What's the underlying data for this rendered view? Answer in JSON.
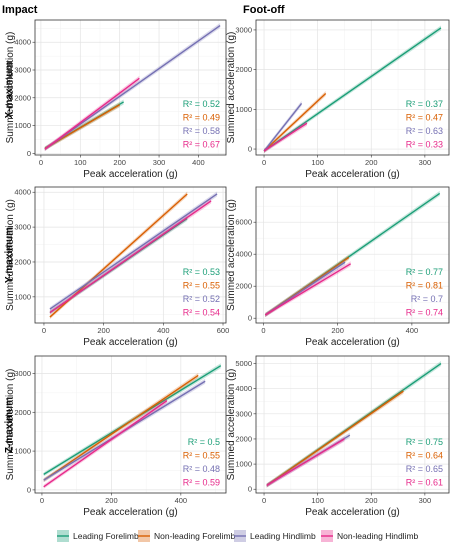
{
  "column_titles": [
    "Impact",
    "Foot-off"
  ],
  "row_titles": [
    "X-maximum",
    "Y-maximum",
    "Z-maximum"
  ],
  "colors": {
    "Leading Forelimb": "#1b9e77",
    "Non-leading Forelimb": "#d95f02",
    "Leading Hindlimb": "#7570b3",
    "Non-leading Hindlimb": "#e7298a"
  },
  "legend": {
    "items": [
      "Leading Forelimb",
      "Non-leading Forelimb",
      "Leading Hindlimb",
      "Non-leading Hindlimb"
    ]
  },
  "chart_data": [
    {
      "type": "line",
      "row": "X-maximum",
      "column": "Impact",
      "xlabel": "Peak acceleration (g)",
      "ylabel": "Summed acceleration (g)",
      "xlim": [
        -15,
        470
      ],
      "ylim": [
        -60,
        4800
      ],
      "xticks": [
        0,
        100,
        200,
        300,
        400
      ],
      "yticks": [
        0,
        1000,
        2000,
        3000,
        4000
      ],
      "series": [
        {
          "name": "Leading Forelimb",
          "x": [
            10,
            210
          ],
          "y": [
            180,
            1850
          ],
          "r2": "R² = 0.52"
        },
        {
          "name": "Non-leading Forelimb",
          "x": [
            10,
            200
          ],
          "y": [
            170,
            1750
          ],
          "r2": "R² = 0.49"
        },
        {
          "name": "Leading Hindlimb",
          "x": [
            10,
            455
          ],
          "y": [
            150,
            4600
          ],
          "r2": "R² = 0.58"
        },
        {
          "name": "Non-leading Hindlimb",
          "x": [
            10,
            250
          ],
          "y": [
            150,
            2700
          ],
          "r2": "R² = 0.67"
        }
      ]
    },
    {
      "type": "line",
      "row": "X-maximum",
      "column": "Foot-off",
      "xlabel": "Peak acceleration (g)",
      "ylabel": "Summed acceleration (g)",
      "xlim": [
        -15,
        345
      ],
      "ylim": [
        -150,
        3250
      ],
      "xticks": [
        0,
        100,
        200,
        300
      ],
      "yticks": [
        0,
        1000,
        2000,
        3000
      ],
      "series": [
        {
          "name": "Leading Forelimb",
          "x": [
            0,
            330
          ],
          "y": [
            -50,
            3050
          ],
          "r2": "R² = 0.37"
        },
        {
          "name": "Non-leading Forelimb",
          "x": [
            0,
            115
          ],
          "y": [
            -50,
            1400
          ],
          "r2": "R² = 0.47"
        },
        {
          "name": "Leading Hindlimb",
          "x": [
            0,
            70
          ],
          "y": [
            -50,
            1150
          ],
          "r2": "R² = 0.63"
        },
        {
          "name": "Non-leading Hindlimb",
          "x": [
            0,
            80
          ],
          "y": [
            -50,
            650
          ],
          "r2": "R² = 0.33"
        }
      ]
    },
    {
      "type": "line",
      "row": "Y-maximum",
      "column": "Impact",
      "xlabel": "Peak acceleration (g)",
      "ylabel": "Summed acceleration (g)",
      "xlim": [
        -30,
        610
      ],
      "ylim": [
        250,
        4150
      ],
      "xticks": [
        0,
        200,
        400,
        600
      ],
      "yticks": [
        1000,
        2000,
        3000,
        4000
      ],
      "series": [
        {
          "name": "Leading Forelimb",
          "x": [
            20,
            480
          ],
          "y": [
            550,
            3250
          ],
          "r2": "R² = 0.53"
        },
        {
          "name": "Non-leading Forelimb",
          "x": [
            20,
            480
          ],
          "y": [
            420,
            3950
          ],
          "r2": "R² = 0.55"
        },
        {
          "name": "Leading Hindlimb",
          "x": [
            20,
            580
          ],
          "y": [
            650,
            3950
          ],
          "r2": "R² = 0.52"
        },
        {
          "name": "Non-leading Hindlimb",
          "x": [
            20,
            560
          ],
          "y": [
            550,
            3750
          ],
          "r2": "R² = 0.54"
        }
      ]
    },
    {
      "type": "line",
      "row": "Y-maximum",
      "column": "Foot-off",
      "xlabel": "Peak acceleration (g)",
      "ylabel": "Summed acceleration (g)",
      "xlim": [
        -20,
        500
      ],
      "ylim": [
        -300,
        8200
      ],
      "xticks": [
        0,
        200,
        400
      ],
      "yticks": [
        0,
        2000,
        4000,
        6000
      ],
      "series": [
        {
          "name": "Leading Forelimb",
          "x": [
            5,
            475
          ],
          "y": [
            200,
            7800
          ],
          "r2": "R² = 0.77"
        },
        {
          "name": "Non-leading Forelimb",
          "x": [
            5,
            230
          ],
          "y": [
            200,
            3800
          ],
          "r2": "R² = 0.81"
        },
        {
          "name": "Leading Hindlimb",
          "x": [
            5,
            220
          ],
          "y": [
            200,
            3500
          ],
          "r2": "R² = 0.7"
        },
        {
          "name": "Non-leading Hindlimb",
          "x": [
            5,
            235
          ],
          "y": [
            200,
            3400
          ],
          "r2": "R² = 0.74"
        }
      ]
    },
    {
      "type": "line",
      "row": "Z-maximum",
      "column": "Impact",
      "xlabel": "Peak acceleration (g)",
      "ylabel": "Summed acceleration (g)",
      "xlim": [
        -20,
        530
      ],
      "ylim": [
        -80,
        3450
      ],
      "xticks": [
        0,
        200,
        400
      ],
      "yticks": [
        0,
        1000,
        2000,
        3000
      ],
      "series": [
        {
          "name": "Leading Forelimb",
          "x": [
            5,
            515
          ],
          "y": [
            400,
            3200
          ],
          "r2": "R² = 0.5"
        },
        {
          "name": "Non-leading Forelimb",
          "x": [
            5,
            450
          ],
          "y": [
            250,
            2950
          ],
          "r2": "R² = 0.55"
        },
        {
          "name": "Leading Hindlimb",
          "x": [
            5,
            470
          ],
          "y": [
            250,
            2800
          ],
          "r2": "R² = 0.48"
        },
        {
          "name": "Non-leading Hindlimb",
          "x": [
            5,
            360
          ],
          "y": [
            80,
            2300
          ],
          "r2": "R² = 0.59"
        }
      ]
    },
    {
      "type": "line",
      "row": "Z-maximum",
      "column": "Foot-off",
      "xlabel": "Peak acceleration (g)",
      "ylabel": "Summed acceleration (g)",
      "xlim": [
        -15,
        345
      ],
      "ylim": [
        -150,
        5300
      ],
      "xticks": [
        0,
        100,
        200,
        300
      ],
      "yticks": [
        0,
        1000,
        2000,
        3000,
        4000,
        5000
      ],
      "series": [
        {
          "name": "Leading Forelimb",
          "x": [
            5,
            330
          ],
          "y": [
            150,
            5000
          ],
          "r2": "R² = 0.75"
        },
        {
          "name": "Non-leading Forelimb",
          "x": [
            5,
            260
          ],
          "y": [
            150,
            3900
          ],
          "r2": "R² = 0.64"
        },
        {
          "name": "Leading Hindlimb",
          "x": [
            5,
            160
          ],
          "y": [
            150,
            2150
          ],
          "r2": "R² = 0.65"
        },
        {
          "name": "Non-leading Hindlimb",
          "x": [
            5,
            150
          ],
          "y": [
            150,
            2000
          ],
          "r2": "R² = 0.61"
        }
      ]
    }
  ]
}
